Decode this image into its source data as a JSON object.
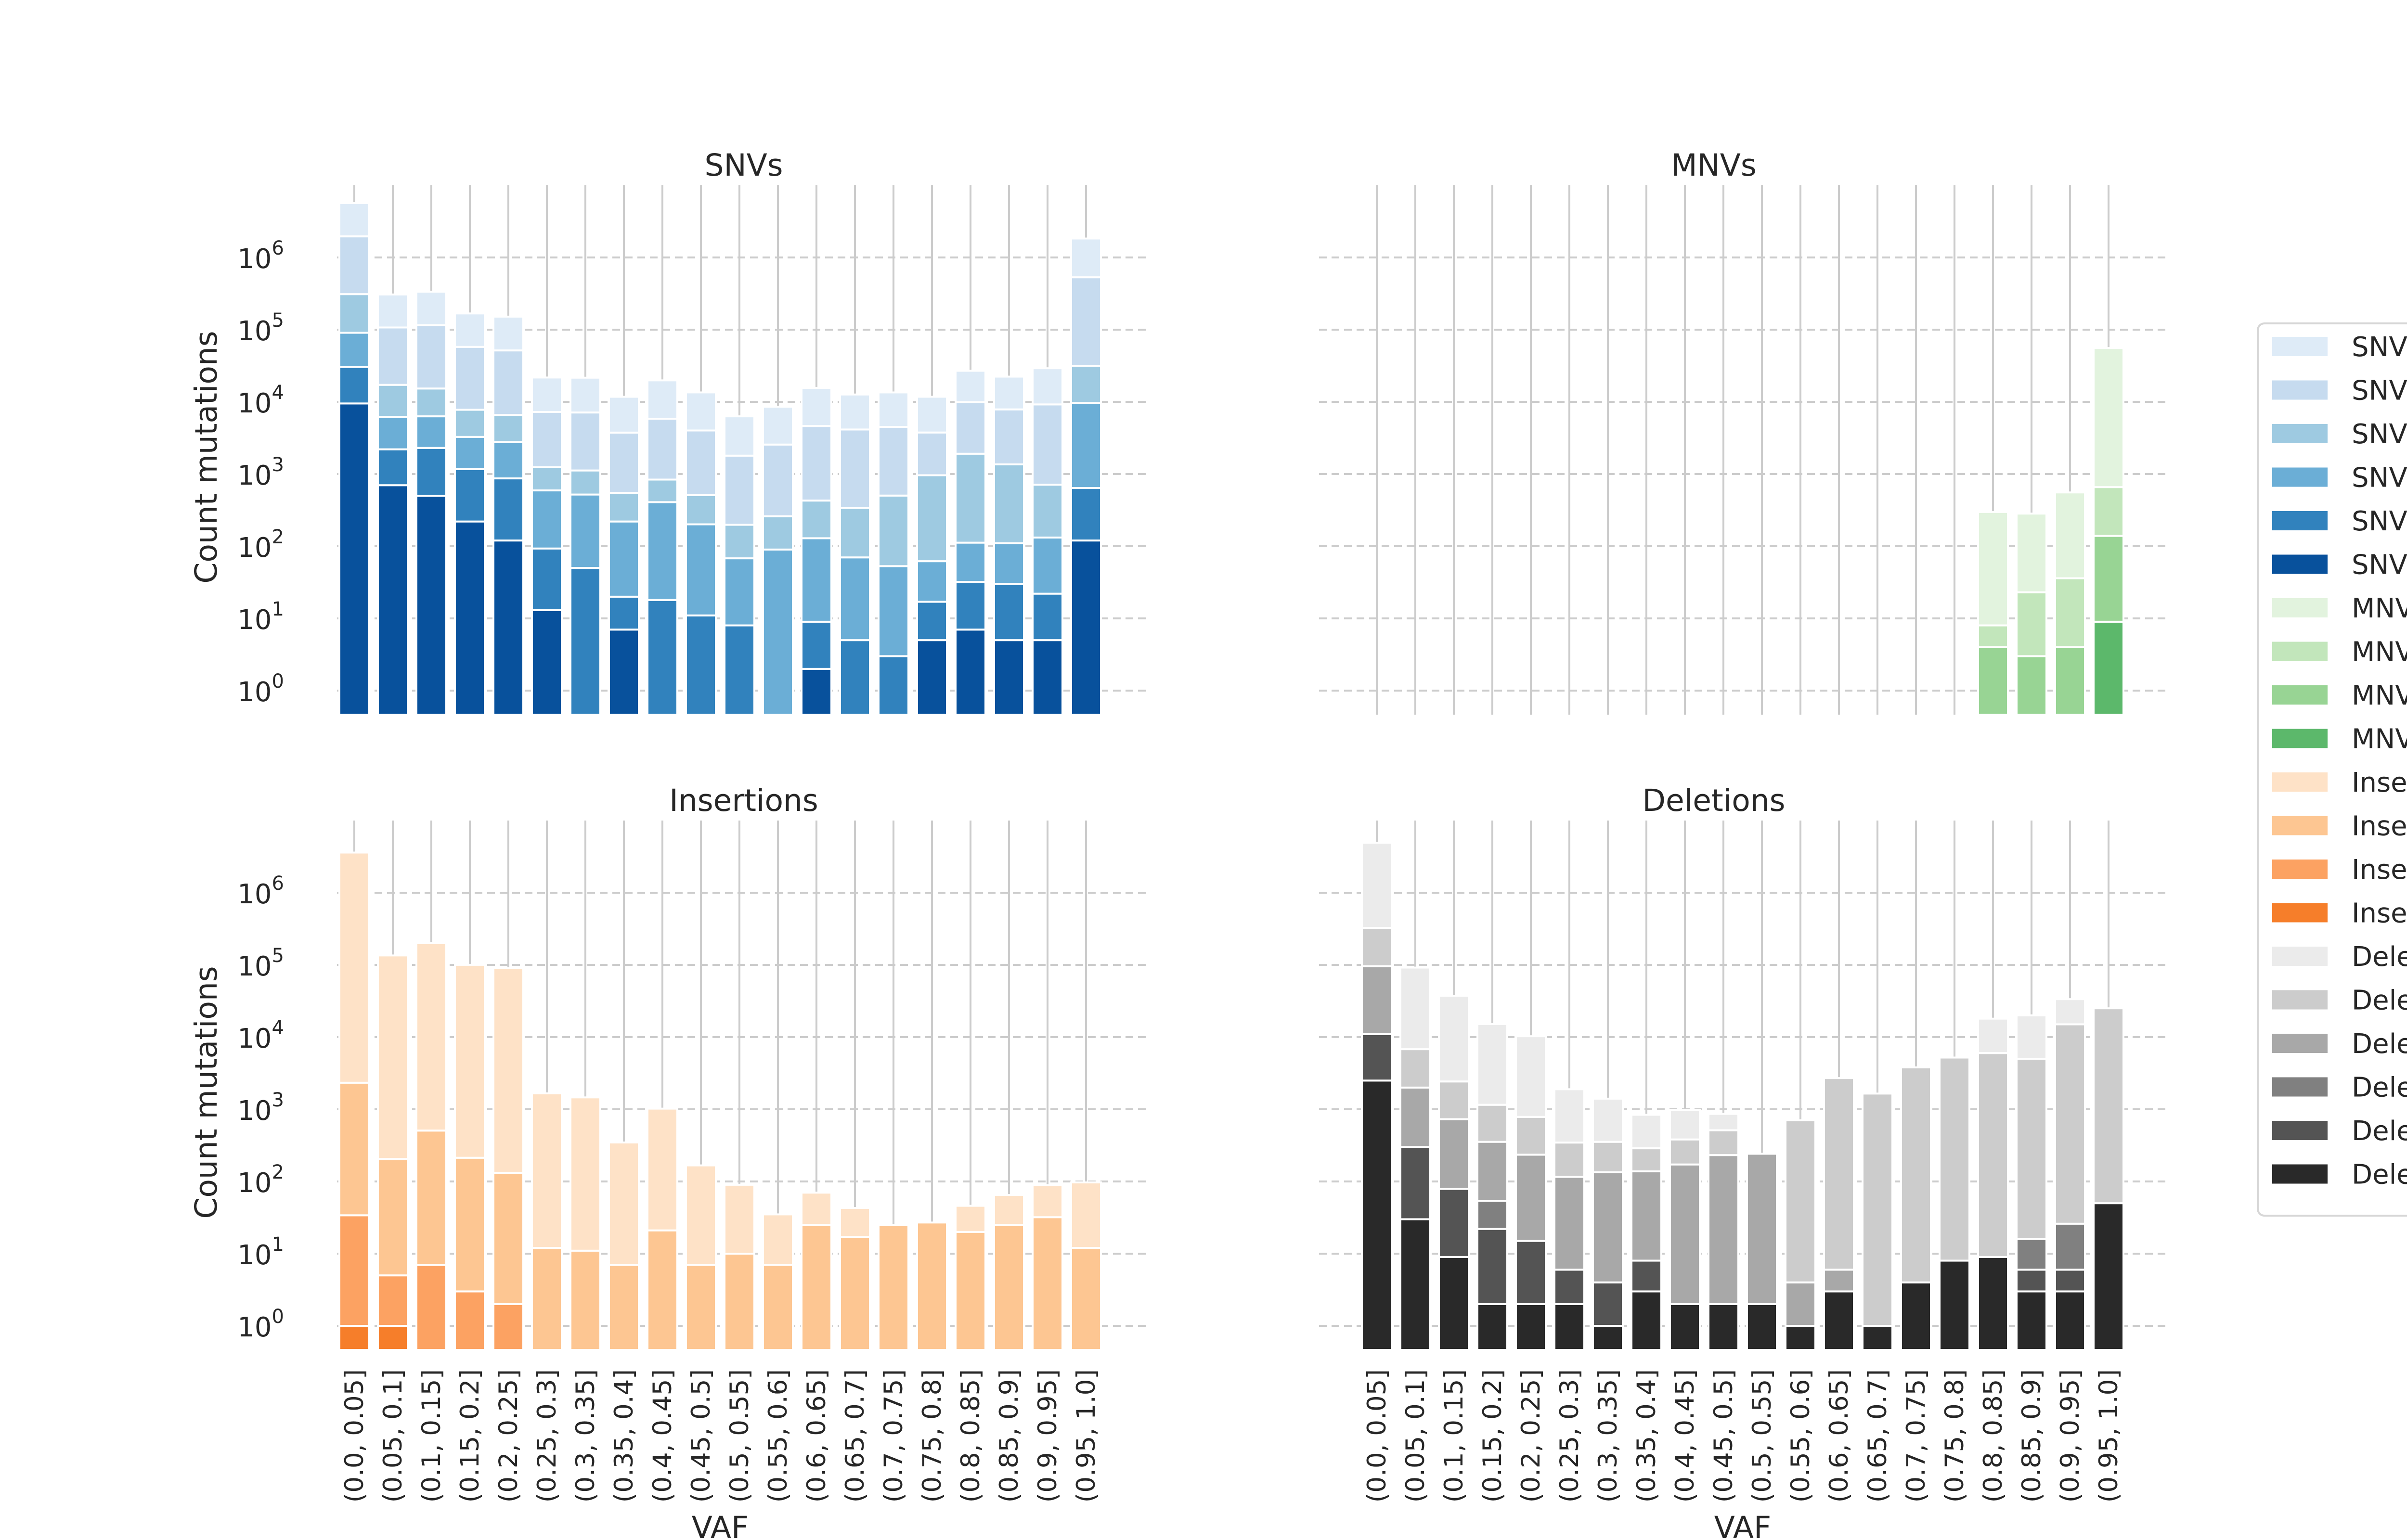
{
  "chart_data": [
    {
      "type": "bar",
      "stacked": true,
      "title": "SNVs",
      "xlabel": "",
      "ylabel": "Count mutations",
      "yscale": "log",
      "ylim": [
        0.3,
        8000000
      ],
      "categories": [
        "(0.0, 0.05]",
        "(0.05, 0.1]",
        "(0.1, 0.15]",
        "(0.15, 0.2]",
        "(0.2, 0.25]",
        "(0.25, 0.3]",
        "(0.3, 0.35]",
        "(0.35, 0.4]",
        "(0.4, 0.45]",
        "(0.45, 0.5]",
        "(0.5, 0.55]",
        "(0.55, 0.6]",
        "(0.6, 0.65]",
        "(0.65, 0.7]",
        "(0.7, 0.75]",
        "(0.75, 0.8]",
        "(0.8, 0.85]",
        "(0.85, 0.9]",
        "(0.9, 0.95]",
        "(0.95, 1.0]"
      ],
      "series": [
        {
          "name": "SNV",
          "color": "#08519c",
          "values": [
            9500,
            700,
            500,
            220,
            120,
            13,
            0,
            7,
            0,
            0,
            0,
            0,
            2,
            0,
            0,
            5,
            7,
            5,
            5,
            120
          ]
        },
        {
          "name": "SNV",
          "color": "#3182bd",
          "values": [
            21000,
            1500,
            1800,
            950,
            750,
            80,
            50,
            13,
            18,
            11,
            8,
            0,
            7,
            5,
            3,
            12,
            25,
            25,
            17,
            520
          ]
        },
        {
          "name": "SNV",
          "color": "#6baed6",
          "values": [
            60000,
            4000,
            4000,
            2100,
            1900,
            500,
            470,
            200,
            390,
            190,
            60,
            90,
            120,
            65,
            50,
            45,
            80,
            80,
            110,
            9000
          ]
        },
        {
          "name": "SNV",
          "color": "#9ecae1",
          "values": [
            220000,
            11000,
            9000,
            4500,
            3800,
            650,
            600,
            330,
            430,
            310,
            130,
            170,
            300,
            270,
            450,
            900,
            1800,
            1250,
            580,
            22000
          ]
        },
        {
          "name": "SNV",
          "color": "#c6dbef",
          "values": [
            1650000,
            90000,
            100000,
            50000,
            45000,
            6000,
            6000,
            3200,
            5000,
            3500,
            1600,
            2300,
            4200,
            3800,
            4000,
            2800,
            8000,
            6500,
            8500,
            500000
          ]
        },
        {
          "name": "SNV",
          "color": "#deebf7",
          "values": [
            3700000,
            200000,
            220000,
            110000,
            100000,
            14500,
            14500,
            8000,
            14000,
            9500,
            4500,
            6000,
            11000,
            8500,
            9000,
            8000,
            17000,
            14500,
            20000,
            1300000
          ]
        }
      ]
    },
    {
      "type": "bar",
      "stacked": true,
      "title": "MNVs",
      "xlabel": "",
      "ylabel": "",
      "yscale": "log",
      "ylim": [
        0.3,
        8000000
      ],
      "categories": [
        "(0.0, 0.05]",
        "(0.05, 0.1]",
        "(0.1, 0.15]",
        "(0.15, 0.2]",
        "(0.2, 0.25]",
        "(0.25, 0.3]",
        "(0.3, 0.35]",
        "(0.35, 0.4]",
        "(0.4, 0.45]",
        "(0.45, 0.5]",
        "(0.5, 0.55]",
        "(0.55, 0.6]",
        "(0.6, 0.65]",
        "(0.65, 0.7]",
        "(0.7, 0.75]",
        "(0.75, 0.8]",
        "(0.8, 0.85]",
        "(0.85, 0.9]",
        "(0.9, 0.95]",
        "(0.95, 1.0]"
      ],
      "series": [
        {
          "name": "MNV",
          "color": "#5cb86b",
          "values": [
            0,
            0,
            0,
            0,
            0,
            0,
            0,
            0,
            0,
            0,
            0,
            0,
            0,
            0,
            0,
            0,
            0,
            0,
            0,
            9
          ]
        },
        {
          "name": "MNV",
          "color": "#98d494",
          "values": [
            0,
            0,
            0,
            0,
            0,
            0,
            0,
            0,
            0,
            0,
            0,
            0,
            0,
            0,
            0,
            0,
            4,
            3,
            4,
            130
          ]
        },
        {
          "name": "MNV",
          "color": "#c2e6bb",
          "values": [
            0,
            0,
            0,
            0,
            0,
            0,
            0,
            0,
            0,
            0,
            0,
            0,
            0,
            0,
            0,
            0,
            4,
            20,
            32,
            520
          ]
        },
        {
          "name": "MNV",
          "color": "#e2f3de",
          "values": [
            0,
            0,
            0,
            0,
            0,
            0,
            0,
            0,
            0,
            0,
            0,
            0,
            0,
            0,
            0,
            0,
            290,
            260,
            520,
            55000
          ]
        }
      ]
    },
    {
      "type": "bar",
      "stacked": true,
      "title": "Insertions",
      "xlabel": "VAF",
      "ylabel": "Count mutations",
      "yscale": "log",
      "ylim": [
        0.3,
        8000000
      ],
      "categories": [
        "(0.0, 0.05]",
        "(0.05, 0.1]",
        "(0.1, 0.15]",
        "(0.15, 0.2]",
        "(0.2, 0.25]",
        "(0.25, 0.3]",
        "(0.3, 0.35]",
        "(0.35, 0.4]",
        "(0.4, 0.45]",
        "(0.45, 0.5]",
        "(0.5, 0.55]",
        "(0.55, 0.6]",
        "(0.6, 0.65]",
        "(0.65, 0.7]",
        "(0.7, 0.75]",
        "(0.75, 0.8]",
        "(0.8, 0.85]",
        "(0.85, 0.9]",
        "(0.9, 0.95]",
        "(0.95, 1.0]"
      ],
      "series": [
        {
          "name": "Insertion",
          "color": "#f67e2a",
          "values": [
            1,
            1,
            0,
            0,
            0,
            0,
            0,
            0,
            0,
            0,
            0,
            0,
            0,
            0,
            0,
            0,
            0,
            0,
            0,
            0
          ]
        },
        {
          "name": "Insertion",
          "color": "#fca262",
          "values": [
            33,
            4,
            7,
            3,
            2,
            0,
            0,
            0,
            0,
            0,
            0,
            0,
            0,
            0,
            0,
            0,
            0,
            0,
            0,
            0
          ]
        },
        {
          "name": "Insertion",
          "color": "#fdc692",
          "values": [
            2300,
            200,
            500,
            210,
            130,
            12,
            11,
            7,
            21,
            7,
            10,
            7,
            25,
            17,
            25,
            27,
            20,
            25,
            32,
            12
          ]
        },
        {
          "name": "Insertion",
          "color": "#fee2c7",
          "values": [
            3600000,
            135000,
            200000,
            100000,
            90000,
            1650,
            1450,
            340,
            1000,
            160,
            80,
            28,
            45,
            26,
            0,
            0,
            26,
            40,
            57,
            85
          ]
        }
      ]
    },
    {
      "type": "bar",
      "stacked": true,
      "title": "Deletions",
      "xlabel": "VAF",
      "ylabel": "",
      "yscale": "log",
      "ylim": [
        0.3,
        8000000
      ],
      "categories": [
        "(0.0, 0.05]",
        "(0.05, 0.1]",
        "(0.1, 0.15]",
        "(0.15, 0.2]",
        "(0.2, 0.25]",
        "(0.25, 0.3]",
        "(0.3, 0.35]",
        "(0.35, 0.4]",
        "(0.4, 0.45]",
        "(0.45, 0.5]",
        "(0.5, 0.55]",
        "(0.55, 0.6]",
        "(0.6, 0.65]",
        "(0.65, 0.7]",
        "(0.7, 0.75]",
        "(0.75, 0.8]",
        "(0.8, 0.85]",
        "(0.85, 0.9]",
        "(0.9, 0.95]",
        "(0.95, 1.0]"
      ],
      "series": [
        {
          "name": "Deletion",
          "color": "#292929",
          "values": [
            2500,
            30,
            9,
            2,
            2,
            2,
            1,
            3,
            2,
            2,
            2,
            1,
            3,
            1,
            4,
            8,
            9,
            3,
            3,
            50
          ]
        },
        {
          "name": "Deletion",
          "color": "#545454",
          "values": [
            8500,
            270,
            70,
            20,
            13,
            4,
            3,
            5,
            0,
            0,
            0,
            0,
            0,
            0,
            0,
            0,
            0,
            3,
            3,
            0
          ]
        },
        {
          "name": "Deletion",
          "color": "#808080",
          "values": [
            0,
            0,
            0,
            32,
            0,
            0,
            0,
            0,
            0,
            0,
            0,
            0,
            0,
            0,
            0,
            0,
            0,
            10,
            20,
            0
          ]
        },
        {
          "name": "Deletion",
          "color": "#a8a8a8",
          "values": [
            85000,
            1700,
            650,
            300,
            220,
            110,
            130,
            130,
            170,
            230,
            240,
            3,
            3,
            0,
            0,
            0,
            0,
            0,
            0,
            0
          ]
        },
        {
          "name": "Deletion",
          "color": "#cccccc",
          "values": [
            230000,
            4800,
            1700,
            800,
            550,
            230,
            220,
            150,
            210,
            280,
            0,
            700,
            2700,
            1650,
            3800,
            5200,
            6000,
            5000,
            15000,
            25000
          ]
        },
        {
          "name": "Deletion",
          "color": "#ebebeb",
          "values": [
            4600000,
            85000,
            35000,
            14000,
            9500,
            1550,
            1050,
            550,
            600,
            350,
            0,
            0,
            0,
            0,
            0,
            0,
            12000,
            15000,
            18500,
            0
          ]
        }
      ]
    }
  ],
  "legend": {
    "placement": "right",
    "entries": [
      {
        "label": "SNV",
        "color": "#deebf7"
      },
      {
        "label": "SNV",
        "color": "#c6dbef"
      },
      {
        "label": "SNV",
        "color": "#9ecae1"
      },
      {
        "label": "SNV",
        "color": "#6baed6"
      },
      {
        "label": "SNV",
        "color": "#3182bd"
      },
      {
        "label": "SNV",
        "color": "#08519c"
      },
      {
        "label": "MNV",
        "color": "#e2f3de"
      },
      {
        "label": "MNV",
        "color": "#c2e6bb"
      },
      {
        "label": "MNV",
        "color": "#98d494"
      },
      {
        "label": "MNV",
        "color": "#5cb86b"
      },
      {
        "label": "Inse",
        "color": "#fee2c7"
      },
      {
        "label": "Inse",
        "color": "#fdc692"
      },
      {
        "label": "Inse",
        "color": "#fca262"
      },
      {
        "label": "Inse",
        "color": "#f67e2a"
      },
      {
        "label": "Dele",
        "color": "#ebebeb"
      },
      {
        "label": "Dele",
        "color": "#cccccc"
      },
      {
        "label": "Dele",
        "color": "#a8a8a8"
      },
      {
        "label": "Dele",
        "color": "#808080"
      },
      {
        "label": "Dele",
        "color": "#545454"
      },
      {
        "label": "Dele",
        "color": "#292929"
      }
    ]
  },
  "axis": {
    "ytick_base": "10",
    "ytick_exponents": [
      "0",
      "1",
      "2",
      "3",
      "4",
      "5",
      "6"
    ],
    "grid_color": "#cccccc"
  }
}
